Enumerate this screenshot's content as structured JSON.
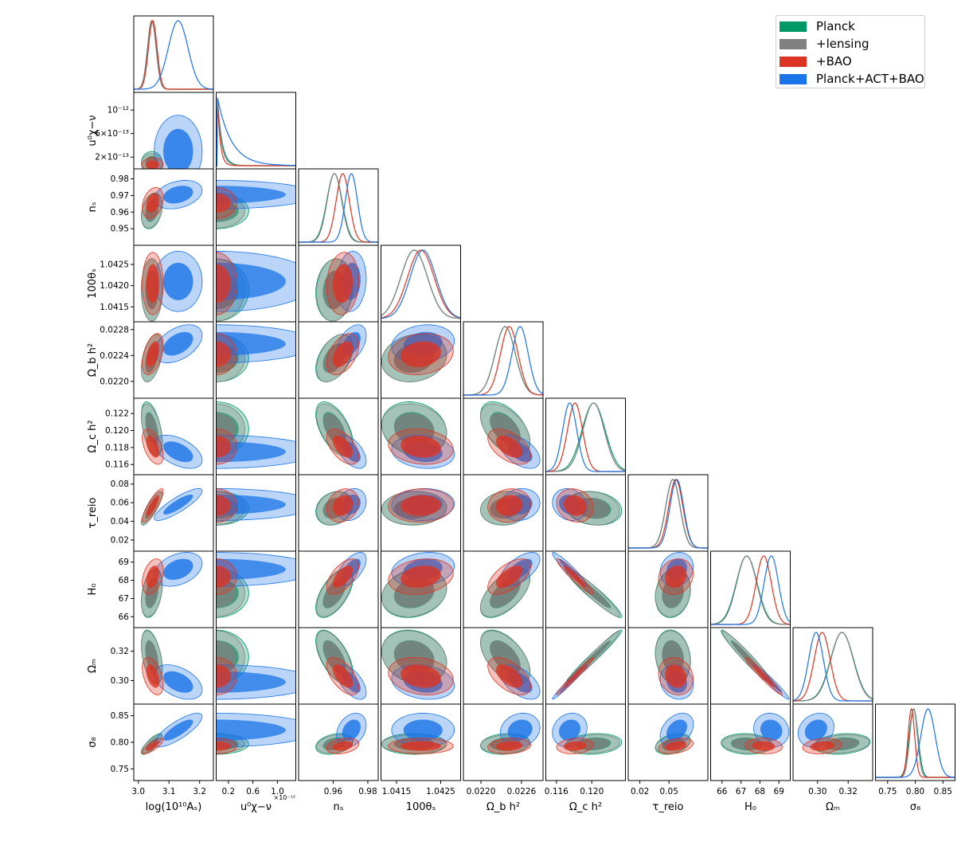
{
  "chart_data": {
    "type": "triangle-corner-plot",
    "title": "",
    "params": [
      {
        "key": "logA",
        "label": "log(10¹⁰Aₛ)",
        "range": [
          2.985,
          3.245
        ],
        "ticks": [
          3.0,
          3.1,
          3.2
        ],
        "tick_labels": [
          "3.0",
          "3.1",
          "3.2"
        ]
      },
      {
        "key": "u",
        "label": "u⁰χ−ν",
        "range": [
          0.0,
          1.3
        ],
        "ticks": [
          0.2,
          0.6,
          1.0
        ],
        "tick_labels": [
          "0.2",
          "0.6",
          "1.0"
        ],
        "multiplier": "×10⁻¹²",
        "y_ticks": [
          0.2,
          0.6,
          1.0
        ],
        "y_tick_labels": [
          "2×10⁻¹³",
          "6×10⁻¹³",
          "10⁻¹²"
        ]
      },
      {
        "key": "ns",
        "label": "nₛ",
        "range": [
          0.94,
          0.986
        ],
        "ticks": [
          0.95,
          0.96,
          0.97,
          0.98
        ],
        "tick_labels": [
          "0.95",
          "0.96",
          "0.97",
          "0.98"
        ],
        "x_ticks": [
          0.96,
          0.98
        ],
        "x_tick_labels": [
          "0.96",
          "0.98"
        ]
      },
      {
        "key": "th",
        "label": "100θₛ",
        "range": [
          1.04115,
          1.04295
        ],
        "ticks": [
          1.0415,
          1.042,
          1.0425
        ],
        "tick_labels": [
          "1.0415",
          "1.0420",
          "1.0425"
        ],
        "x_ticks": [
          1.0415,
          1.0425
        ],
        "x_tick_labels": [
          "1.0415",
          "1.0425"
        ]
      },
      {
        "key": "obh",
        "label": "Ω_b h²",
        "range": [
          0.02174,
          0.02292
        ],
        "ticks": [
          0.022,
          0.0224,
          0.0228
        ],
        "tick_labels": [
          "0.0220",
          "0.0224",
          "0.0228"
        ],
        "x_ticks": [
          0.022,
          0.0226
        ],
        "x_tick_labels": [
          "0.0220",
          "0.0226"
        ]
      },
      {
        "key": "och",
        "label": "Ω_c h²",
        "range": [
          0.1148,
          0.1238
        ],
        "ticks": [
          0.116,
          0.118,
          0.12,
          0.122
        ],
        "tick_labels": [
          "0.116",
          "0.118",
          "0.120",
          "0.122"
        ],
        "x_ticks": [
          0.116,
          0.12
        ],
        "x_tick_labels": [
          "0.116",
          "0.120"
        ]
      },
      {
        "key": "tau",
        "label": "τ_reio",
        "range": [
          0.008,
          0.09
        ],
        "ticks": [
          0.02,
          0.04,
          0.06,
          0.08
        ],
        "tick_labels": [
          "0.02",
          "0.04",
          "0.06",
          "0.08"
        ],
        "x_ticks": [
          0.02,
          0.05
        ],
        "x_tick_labels": [
          "0.02",
          "0.05"
        ]
      },
      {
        "key": "H0",
        "label": "H₀",
        "range": [
          65.4,
          69.6
        ],
        "ticks": [
          66,
          67,
          68,
          69
        ],
        "tick_labels": [
          "66",
          "67",
          "68",
          "69"
        ]
      },
      {
        "key": "Om",
        "label": "Ωₘ",
        "range": [
          0.284,
          0.336
        ],
        "ticks": [
          0.3,
          0.32
        ],
        "tick_labels": [
          "0.30",
          "0.32"
        ]
      },
      {
        "key": "s8",
        "label": "σ₈",
        "range": [
          0.728,
          0.872
        ],
        "ticks": [
          0.75,
          0.8,
          0.85
        ],
        "tick_labels": [
          "0.75",
          "0.80",
          "0.85"
        ]
      }
    ],
    "series": [
      {
        "name": "Planck",
        "color": "#009966",
        "mean": {
          "logA": 3.044,
          "u": 0.1,
          "ns": 0.9607,
          "th": 1.0419,
          "obh": 0.02236,
          "och": 0.1202,
          "tau": 0.054,
          "H0": 67.3,
          "Om": 0.316,
          "s8": 0.797
        },
        "sigma": {
          "logA": 0.014,
          "u": 0.08,
          "ns": 0.0044,
          "th": 0.0003,
          "obh": 0.00015,
          "och": 0.0013,
          "tau": 0.0074,
          "H0": 0.55,
          "Om": 0.0075,
          "s8": 0.008
        }
      },
      {
        "name": "+lensing",
        "color": "#808080",
        "mean": {
          "logA": 3.044,
          "u": 0.09,
          "ns": 0.9607,
          "th": 1.0419,
          "obh": 0.02236,
          "och": 0.1202,
          "tau": 0.054,
          "H0": 67.3,
          "Om": 0.316,
          "s8": 0.797
        },
        "sigma": {
          "logA": 0.014,
          "u": 0.07,
          "ns": 0.0042,
          "th": 0.0003,
          "obh": 0.00015,
          "och": 0.0012,
          "tau": 0.0073,
          "H0": 0.53,
          "Om": 0.0073,
          "s8": 0.007
        }
      },
      {
        "name": "+BAO",
        "color": "#dd3322",
        "mean": {
          "logA": 3.047,
          "u": 0.07,
          "ns": 0.9655,
          "th": 1.04205,
          "obh": 0.02242,
          "och": 0.1181,
          "tau": 0.057,
          "H0": 68.2,
          "Om": 0.303,
          "s8": 0.793
        },
        "sigma": {
          "logA": 0.014,
          "u": 0.05,
          "ns": 0.0038,
          "th": 0.0003,
          "obh": 0.00013,
          "och": 0.00085,
          "tau": 0.0073,
          "H0": 0.4,
          "Om": 0.0052,
          "s8": 0.006
        }
      },
      {
        "name": "Planck+ACT+BAO",
        "color": "#1a73e8",
        "mean": {
          "logA": 3.13,
          "u": 0.3,
          "ns": 0.9705,
          "th": 1.0421,
          "obh": 0.02258,
          "och": 0.1175,
          "tau": 0.058,
          "H0": 68.6,
          "Om": 0.299,
          "s8": 0.823
        },
        "sigma": {
          "logA": 0.032,
          "u": 0.25,
          "ns": 0.0035,
          "th": 0.00029,
          "obh": 0.00012,
          "och": 0.0008,
          "tau": 0.007,
          "H0": 0.38,
          "Om": 0.0048,
          "s8": 0.013
        }
      }
    ],
    "correlations": {
      "logA-ns": 0.3,
      "logA-obh": 0.45,
      "logA-och": -0.5,
      "logA-tau": 0.85,
      "logA-H0": 0.35,
      "logA-Om": -0.45,
      "logA-s8": 0.8,
      "u-ns": -0.35,
      "u-th": -0.1,
      "u-obh": -0.3,
      "u-och": 0.15,
      "u-tau": -0.1,
      "u-H0": -0.2,
      "u-Om": 0.2,
      "u-s8": -0.4,
      "ns-th": 0.1,
      "ns-obh": 0.45,
      "ns-och": -0.55,
      "ns-tau": 0.2,
      "ns-H0": 0.6,
      "ns-Om": -0.6,
      "ns-s8": 0.3,
      "th-obh": 0.15,
      "th-och": -0.15,
      "th-tau": 0.05,
      "th-H0": 0.2,
      "th-Om": -0.2,
      "th-s8": 0.0,
      "obh-och": -0.5,
      "obh-tau": 0.1,
      "obh-H0": 0.6,
      "obh-Om": -0.55,
      "obh-s8": 0.15,
      "och-tau": -0.15,
      "och-H0": -0.95,
      "och-Om": 0.98,
      "och-s8": 0.15,
      "tau-H0": 0.15,
      "tau-Om": -0.15,
      "tau-s8": 0.35,
      "H0-Om": -0.97,
      "H0-s8": -0.1,
      "Om-s8": 0.2
    },
    "legend_position": "top-right"
  }
}
